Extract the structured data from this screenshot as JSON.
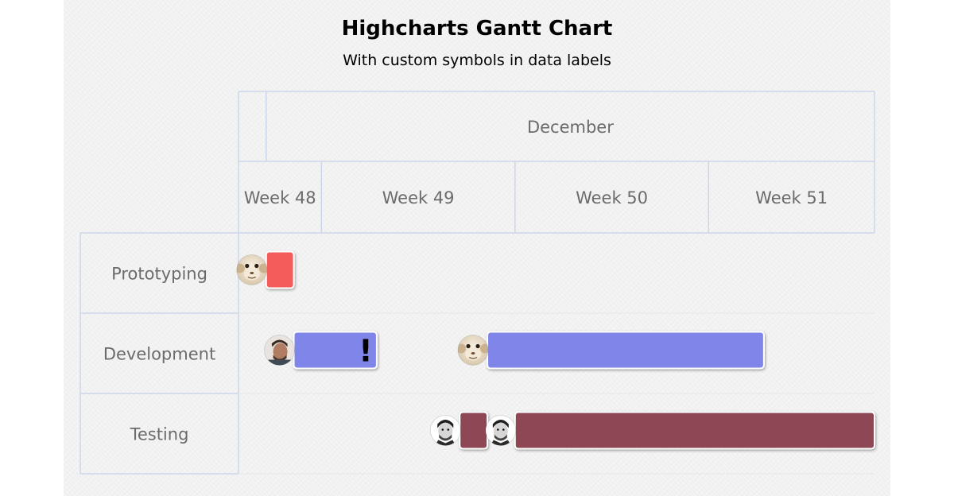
{
  "chart_data": {
    "type": "gantt",
    "title": "Highcharts Gantt Chart",
    "subtitle": "With custom symbols in data labels",
    "x_axis": {
      "range": [
        "2018-11-30",
        "2018-12-23"
      ],
      "months": [
        {
          "label": "December",
          "start": "2018-12-01",
          "end": "2018-12-23"
        }
      ],
      "weeks": [
        {
          "label": "Week 48",
          "start": "2018-11-30",
          "end": "2018-12-03"
        },
        {
          "label": "Week 49",
          "start": "2018-12-03",
          "end": "2018-12-10"
        },
        {
          "label": "Week 50",
          "start": "2018-12-10",
          "end": "2018-12-17"
        },
        {
          "label": "Week 51",
          "start": "2018-12-17",
          "end": "2018-12-24"
        }
      ]
    },
    "categories": [
      "Prototyping",
      "Development",
      "Testing"
    ],
    "tasks": [
      {
        "category": "Prototyping",
        "start": "2018-12-01",
        "end": "2018-12-02",
        "color": "#f45b5b",
        "assignee_icon": "monkey-face-icon",
        "symbol": ""
      },
      {
        "category": "Development",
        "start": "2018-12-02",
        "end": "2018-12-05",
        "color": "#8085e9",
        "assignee_icon": "man-portrait-icon",
        "symbol": "!"
      },
      {
        "category": "Development",
        "start": "2018-12-09",
        "end": "2018-12-19",
        "color": "#8085e9",
        "assignee_icon": "monkey-face-icon",
        "symbol": ""
      },
      {
        "category": "Testing",
        "start": "2018-12-08",
        "end": "2018-12-09",
        "color": "#8d4654",
        "assignee_icon": "businessman-portrait-icon",
        "symbol": ""
      },
      {
        "category": "Testing",
        "start": "2018-12-10",
        "end": "2018-12-23",
        "color": "#8d4654",
        "assignee_icon": "businessman-portrait-icon",
        "symbol": ""
      }
    ]
  }
}
